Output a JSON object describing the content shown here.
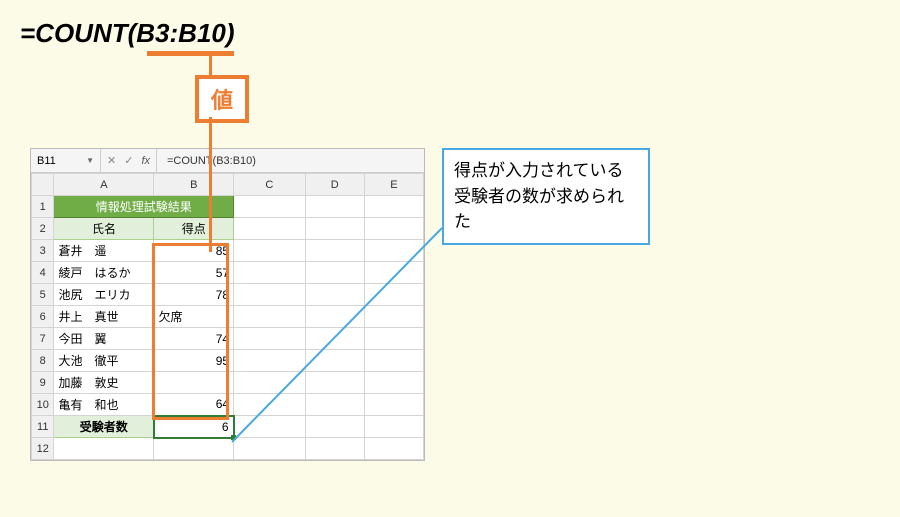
{
  "formula_title": "=COUNT(B3:B10)",
  "value_label": "値",
  "excel": {
    "name_box": "B11",
    "formula_bar": "=COUNT(B3:B10)",
    "columns": [
      "A",
      "B",
      "C",
      "D",
      "E"
    ],
    "header_merged": "情報処理試験結果",
    "sub_headers": {
      "a": "氏名",
      "b": "得点"
    },
    "rows": [
      {
        "n": "3",
        "a": "蒼井　遥",
        "b": "85"
      },
      {
        "n": "4",
        "a": "綾戸　はるか",
        "b": "57"
      },
      {
        "n": "5",
        "a": "池尻　エリカ",
        "b": "78"
      },
      {
        "n": "6",
        "a": "井上　真世",
        "b": "欠席"
      },
      {
        "n": "7",
        "a": "今田　翼",
        "b": "74"
      },
      {
        "n": "8",
        "a": "大池　徹平",
        "b": "95"
      },
      {
        "n": "9",
        "a": "加藤　敦史",
        "b": ""
      },
      {
        "n": "10",
        "a": "亀有　和也",
        "b": "64"
      }
    ],
    "result_row": {
      "n": "11",
      "label": "受験者数",
      "value": "6"
    },
    "extra_rows": [
      "12"
    ]
  },
  "callout_text": "得点が入力されている受験者の数が求められた",
  "colors": {
    "page_bg": "#fcfbe8",
    "orange": "#ed7d31",
    "callout_border": "#4aa8e0",
    "green_header": "#70ad47",
    "green_sub": "#e2efda",
    "selection_green": "#2e7d32"
  }
}
